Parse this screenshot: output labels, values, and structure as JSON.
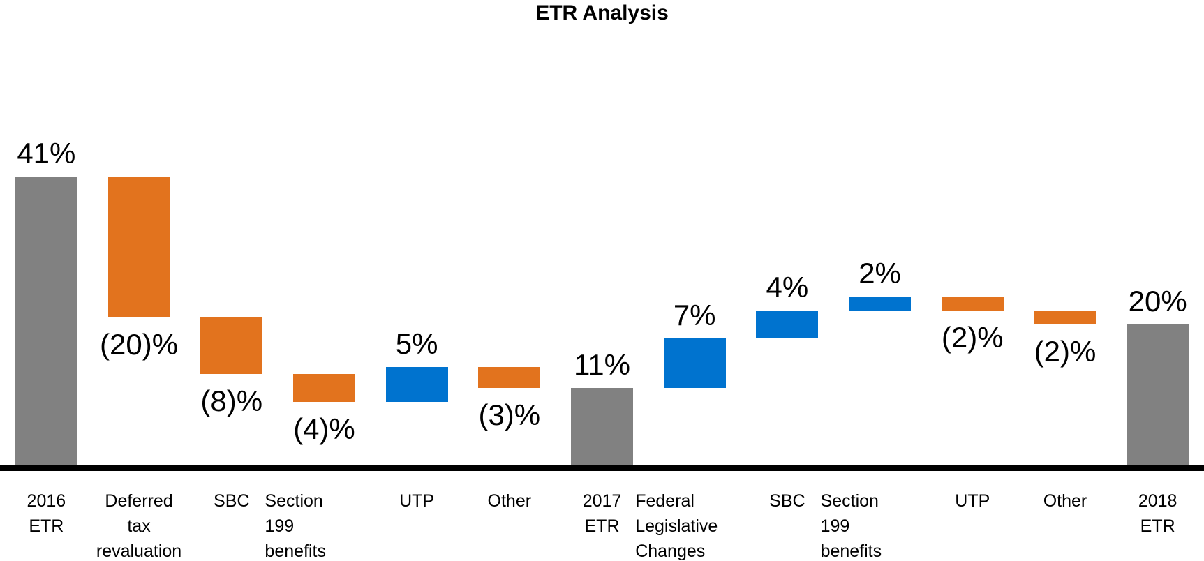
{
  "page": {
    "background_color": "#FFFFFF"
  },
  "chart_data": {
    "type": "waterfall",
    "title": "ETR Analysis",
    "unit": "%",
    "gridlines": false,
    "y_axis_visible": false,
    "x_axis_line": true,
    "colors": {
      "total_bar": "#818181",
      "increase_bar": "#0073CF",
      "decrease_bar": "#E2731E",
      "axis_line": "#000000",
      "text": "#000000"
    },
    "categories": [
      "2016 ETR",
      "Deferred tax revaluation",
      "SBC",
      "Section 199 benefits",
      "UTP",
      "Other",
      "2017 ETR",
      "Federal Legislative Changes",
      "SBC",
      "Section 199 benefits",
      "UTP",
      "Other",
      "2018 ETR"
    ],
    "steps": [
      {
        "category_lines": [
          "2016",
          "ETR"
        ],
        "category_align": "center",
        "kind": "total",
        "value": 41,
        "label": "41%",
        "label_position": "above"
      },
      {
        "category_lines": [
          "Deferred",
          "tax",
          "revaluation"
        ],
        "category_align": "center",
        "kind": "decrease",
        "value": -20,
        "label": "(20)%",
        "label_position": "below"
      },
      {
        "category_lines": [
          "SBC"
        ],
        "category_align": "center",
        "kind": "decrease",
        "value": -8,
        "label": "(8)%",
        "label_position": "below"
      },
      {
        "category_lines": [
          "Section",
          "199",
          "benefits"
        ],
        "category_align": "left",
        "kind": "decrease",
        "value": -4,
        "label": "(4)%",
        "label_position": "below"
      },
      {
        "category_lines": [
          "UTP"
        ],
        "category_align": "center",
        "kind": "increase",
        "value": 5,
        "label": "5%",
        "label_position": "above"
      },
      {
        "category_lines": [
          "Other"
        ],
        "category_align": "center",
        "kind": "decrease",
        "value": -3,
        "label": "(3)%",
        "label_position": "below"
      },
      {
        "category_lines": [
          "2017",
          "ETR"
        ],
        "category_align": "center",
        "kind": "total",
        "value": 11,
        "label": "11%",
        "label_position": "above"
      },
      {
        "category_lines": [
          "Federal",
          "Legislative",
          "Changes"
        ],
        "category_align": "left",
        "kind": "increase",
        "value": 7,
        "label": "7%",
        "label_position": "above"
      },
      {
        "category_lines": [
          "SBC"
        ],
        "category_align": "center",
        "kind": "increase",
        "value": 4,
        "label": "4%",
        "label_position": "above"
      },
      {
        "category_lines": [
          "Section",
          "199",
          "benefits"
        ],
        "category_align": "left",
        "kind": "increase",
        "value": 2,
        "label": "2%",
        "label_position": "above"
      },
      {
        "category_lines": [
          "UTP"
        ],
        "category_align": "center",
        "kind": "decrease",
        "value": -2,
        "label": "(2)%",
        "label_position": "below"
      },
      {
        "category_lines": [
          "Other"
        ],
        "category_align": "center",
        "kind": "decrease",
        "value": -2,
        "label": "(2)%",
        "label_position": "below"
      },
      {
        "category_lines": [
          "2018",
          "ETR"
        ],
        "category_align": "center",
        "kind": "total",
        "value": 20,
        "label": "20%",
        "label_position": "above"
      }
    ],
    "running_totals": [
      41,
      21,
      13,
      9,
      14,
      11,
      11,
      18,
      22,
      24,
      22,
      20,
      20
    ]
  }
}
